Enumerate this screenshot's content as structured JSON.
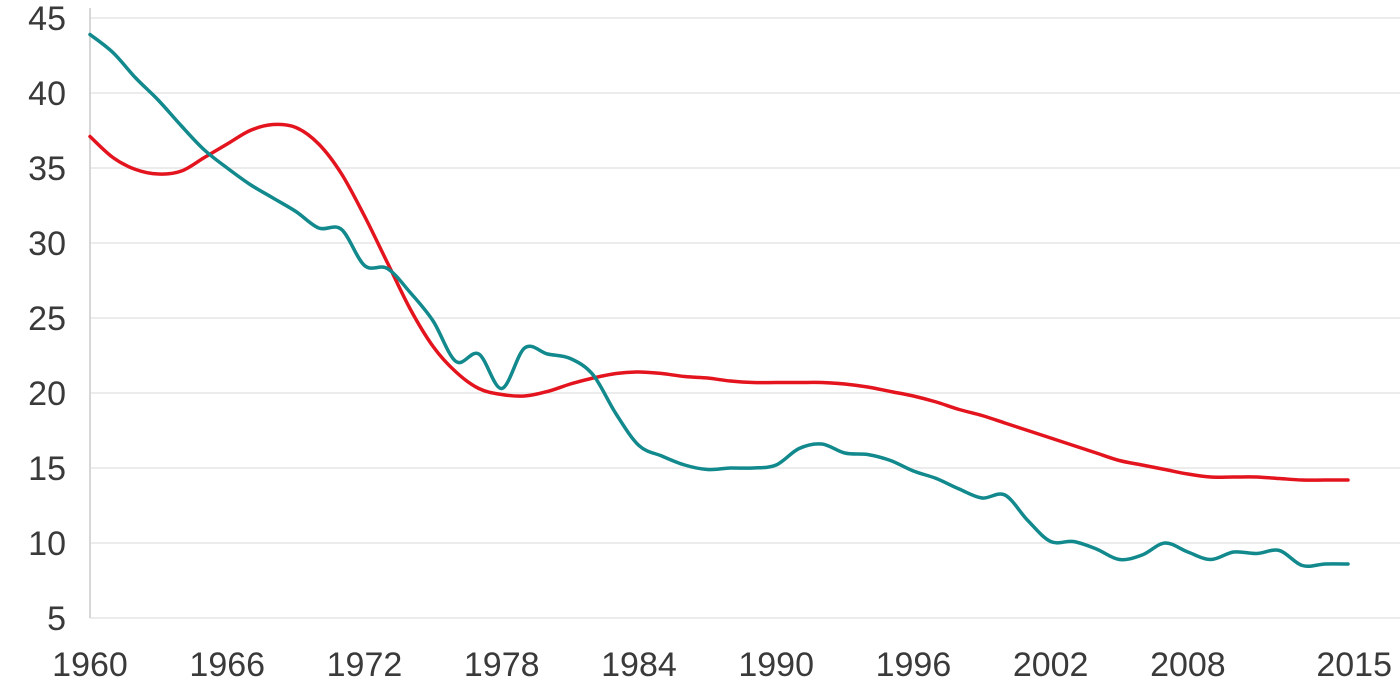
{
  "chart_data": {
    "type": "line",
    "title": "",
    "xlabel": "",
    "ylabel": "",
    "xlim": [
      1960,
      2015
    ],
    "ylim": [
      5,
      45
    ],
    "grid": true,
    "legend": "none",
    "x_ticks": [
      "1960",
      "1966",
      "1972",
      "1978",
      "1984",
      "1990",
      "1996",
      "2002",
      "2008",
      "2015"
    ],
    "y_ticks": [
      "5",
      "10",
      "15",
      "20",
      "25",
      "30",
      "35",
      "40",
      "45"
    ],
    "series": [
      {
        "color": "#e3141e",
        "points": [
          [
            1960,
            37.1
          ],
          [
            1961,
            35.7
          ],
          [
            1962,
            34.9
          ],
          [
            1963,
            34.6
          ],
          [
            1964,
            34.8
          ],
          [
            1965,
            35.7
          ],
          [
            1966,
            36.6
          ],
          [
            1967,
            37.5
          ],
          [
            1968,
            37.9
          ],
          [
            1969,
            37.7
          ],
          [
            1970,
            36.6
          ],
          [
            1971,
            34.6
          ],
          [
            1972,
            31.8
          ],
          [
            1973,
            28.7
          ],
          [
            1974,
            25.6
          ],
          [
            1975,
            23.1
          ],
          [
            1976,
            21.4
          ],
          [
            1977,
            20.3
          ],
          [
            1978,
            19.9
          ],
          [
            1979,
            19.8
          ],
          [
            1980,
            20.1
          ],
          [
            1981,
            20.6
          ],
          [
            1982,
            21.0
          ],
          [
            1983,
            21.3
          ],
          [
            1984,
            21.4
          ],
          [
            1985,
            21.3
          ],
          [
            1986,
            21.1
          ],
          [
            1987,
            21.0
          ],
          [
            1988,
            20.8
          ],
          [
            1989,
            20.7
          ],
          [
            1990,
            20.7
          ],
          [
            1991,
            20.7
          ],
          [
            1992,
            20.7
          ],
          [
            1993,
            20.6
          ],
          [
            1994,
            20.4
          ],
          [
            1995,
            20.1
          ],
          [
            1996,
            19.8
          ],
          [
            1997,
            19.4
          ],
          [
            1998,
            18.9
          ],
          [
            1999,
            18.5
          ],
          [
            2000,
            18.0
          ],
          [
            2001,
            17.5
          ],
          [
            2002,
            17.0
          ],
          [
            2003,
            16.5
          ],
          [
            2004,
            16.0
          ],
          [
            2005,
            15.5
          ],
          [
            2006,
            15.2
          ],
          [
            2007,
            14.9
          ],
          [
            2008,
            14.6
          ],
          [
            2009,
            14.4
          ],
          [
            2010,
            14.4
          ],
          [
            2011,
            14.4
          ],
          [
            2012,
            14.3
          ],
          [
            2013,
            14.2
          ],
          [
            2014,
            14.2
          ],
          [
            2015,
            14.2
          ]
        ]
      },
      {
        "color": "#11898d",
        "points": [
          [
            1960,
            43.9
          ],
          [
            1961,
            42.7
          ],
          [
            1962,
            41.0
          ],
          [
            1963,
            39.5
          ],
          [
            1964,
            37.8
          ],
          [
            1965,
            36.2
          ],
          [
            1966,
            35.0
          ],
          [
            1967,
            33.9
          ],
          [
            1968,
            33.0
          ],
          [
            1969,
            32.1
          ],
          [
            1970,
            31.0
          ],
          [
            1971,
            30.9
          ],
          [
            1972,
            28.5
          ],
          [
            1973,
            28.3
          ],
          [
            1974,
            26.7
          ],
          [
            1975,
            24.8
          ],
          [
            1976,
            22.1
          ],
          [
            1977,
            22.6
          ],
          [
            1978,
            20.3
          ],
          [
            1979,
            23.0
          ],
          [
            1980,
            22.6
          ],
          [
            1981,
            22.3
          ],
          [
            1982,
            21.2
          ],
          [
            1983,
            18.6
          ],
          [
            1984,
            16.5
          ],
          [
            1985,
            15.8
          ],
          [
            1986,
            15.2
          ],
          [
            1987,
            14.9
          ],
          [
            1988,
            15.0
          ],
          [
            1989,
            15.0
          ],
          [
            1990,
            15.2
          ],
          [
            1991,
            16.3
          ],
          [
            1992,
            16.6
          ],
          [
            1993,
            16.0
          ],
          [
            1994,
            15.9
          ],
          [
            1995,
            15.5
          ],
          [
            1996,
            14.8
          ],
          [
            1997,
            14.3
          ],
          [
            1998,
            13.6
          ],
          [
            1999,
            13.0
          ],
          [
            2000,
            13.2
          ],
          [
            2001,
            11.5
          ],
          [
            2002,
            10.1
          ],
          [
            2003,
            10.1
          ],
          [
            2004,
            9.6
          ],
          [
            2005,
            8.9
          ],
          [
            2006,
            9.2
          ],
          [
            2007,
            10.0
          ],
          [
            2008,
            9.4
          ],
          [
            2009,
            8.9
          ],
          [
            2010,
            9.4
          ],
          [
            2011,
            9.3
          ],
          [
            2012,
            9.5
          ],
          [
            2013,
            8.5
          ],
          [
            2014,
            8.6
          ],
          [
            2015,
            8.6
          ]
        ]
      }
    ]
  }
}
